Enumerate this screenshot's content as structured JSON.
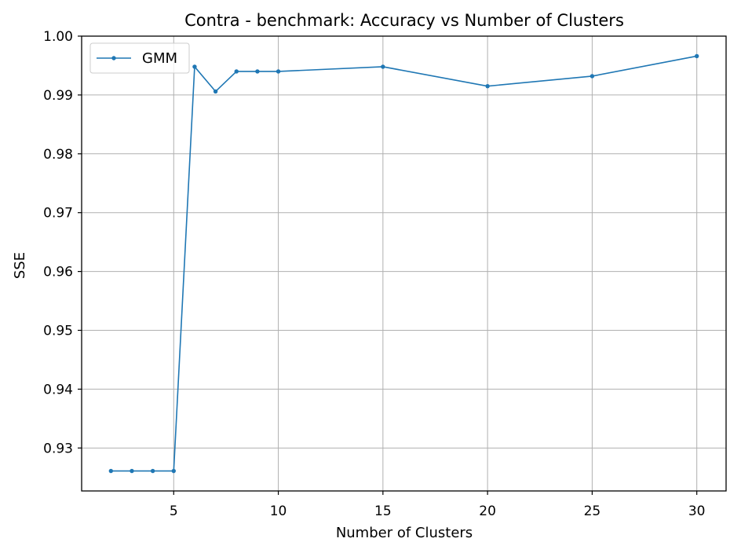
{
  "chart_data": {
    "type": "line",
    "title": "Contra - benchmark: Accuracy vs Number of Clusters",
    "xlabel": "Number of Clusters",
    "ylabel": "SSE",
    "xlim": [
      0.6,
      31.4
    ],
    "ylim": [
      0.9227,
      1.0
    ],
    "xticks": [
      5,
      10,
      15,
      20,
      25,
      30
    ],
    "yticks": [
      0.93,
      0.94,
      0.95,
      0.96,
      0.97,
      0.98,
      0.99,
      1.0
    ],
    "ytick_labels": [
      "0.93",
      "0.94",
      "0.95",
      "0.96",
      "0.97",
      "0.98",
      "0.99",
      "1.00"
    ],
    "grid": true,
    "legend_position": "top-left",
    "series": [
      {
        "name": "GMM",
        "color": "#1f77b4",
        "marker": "circle",
        "x": [
          2,
          3,
          4,
          5,
          6,
          7,
          8,
          9,
          10,
          15,
          20,
          25,
          30
        ],
        "y": [
          0.9261,
          0.9261,
          0.9261,
          0.9261,
          0.9948,
          0.9906,
          0.994,
          0.994,
          0.994,
          0.9948,
          0.9915,
          0.9932,
          0.9966
        ]
      }
    ]
  }
}
